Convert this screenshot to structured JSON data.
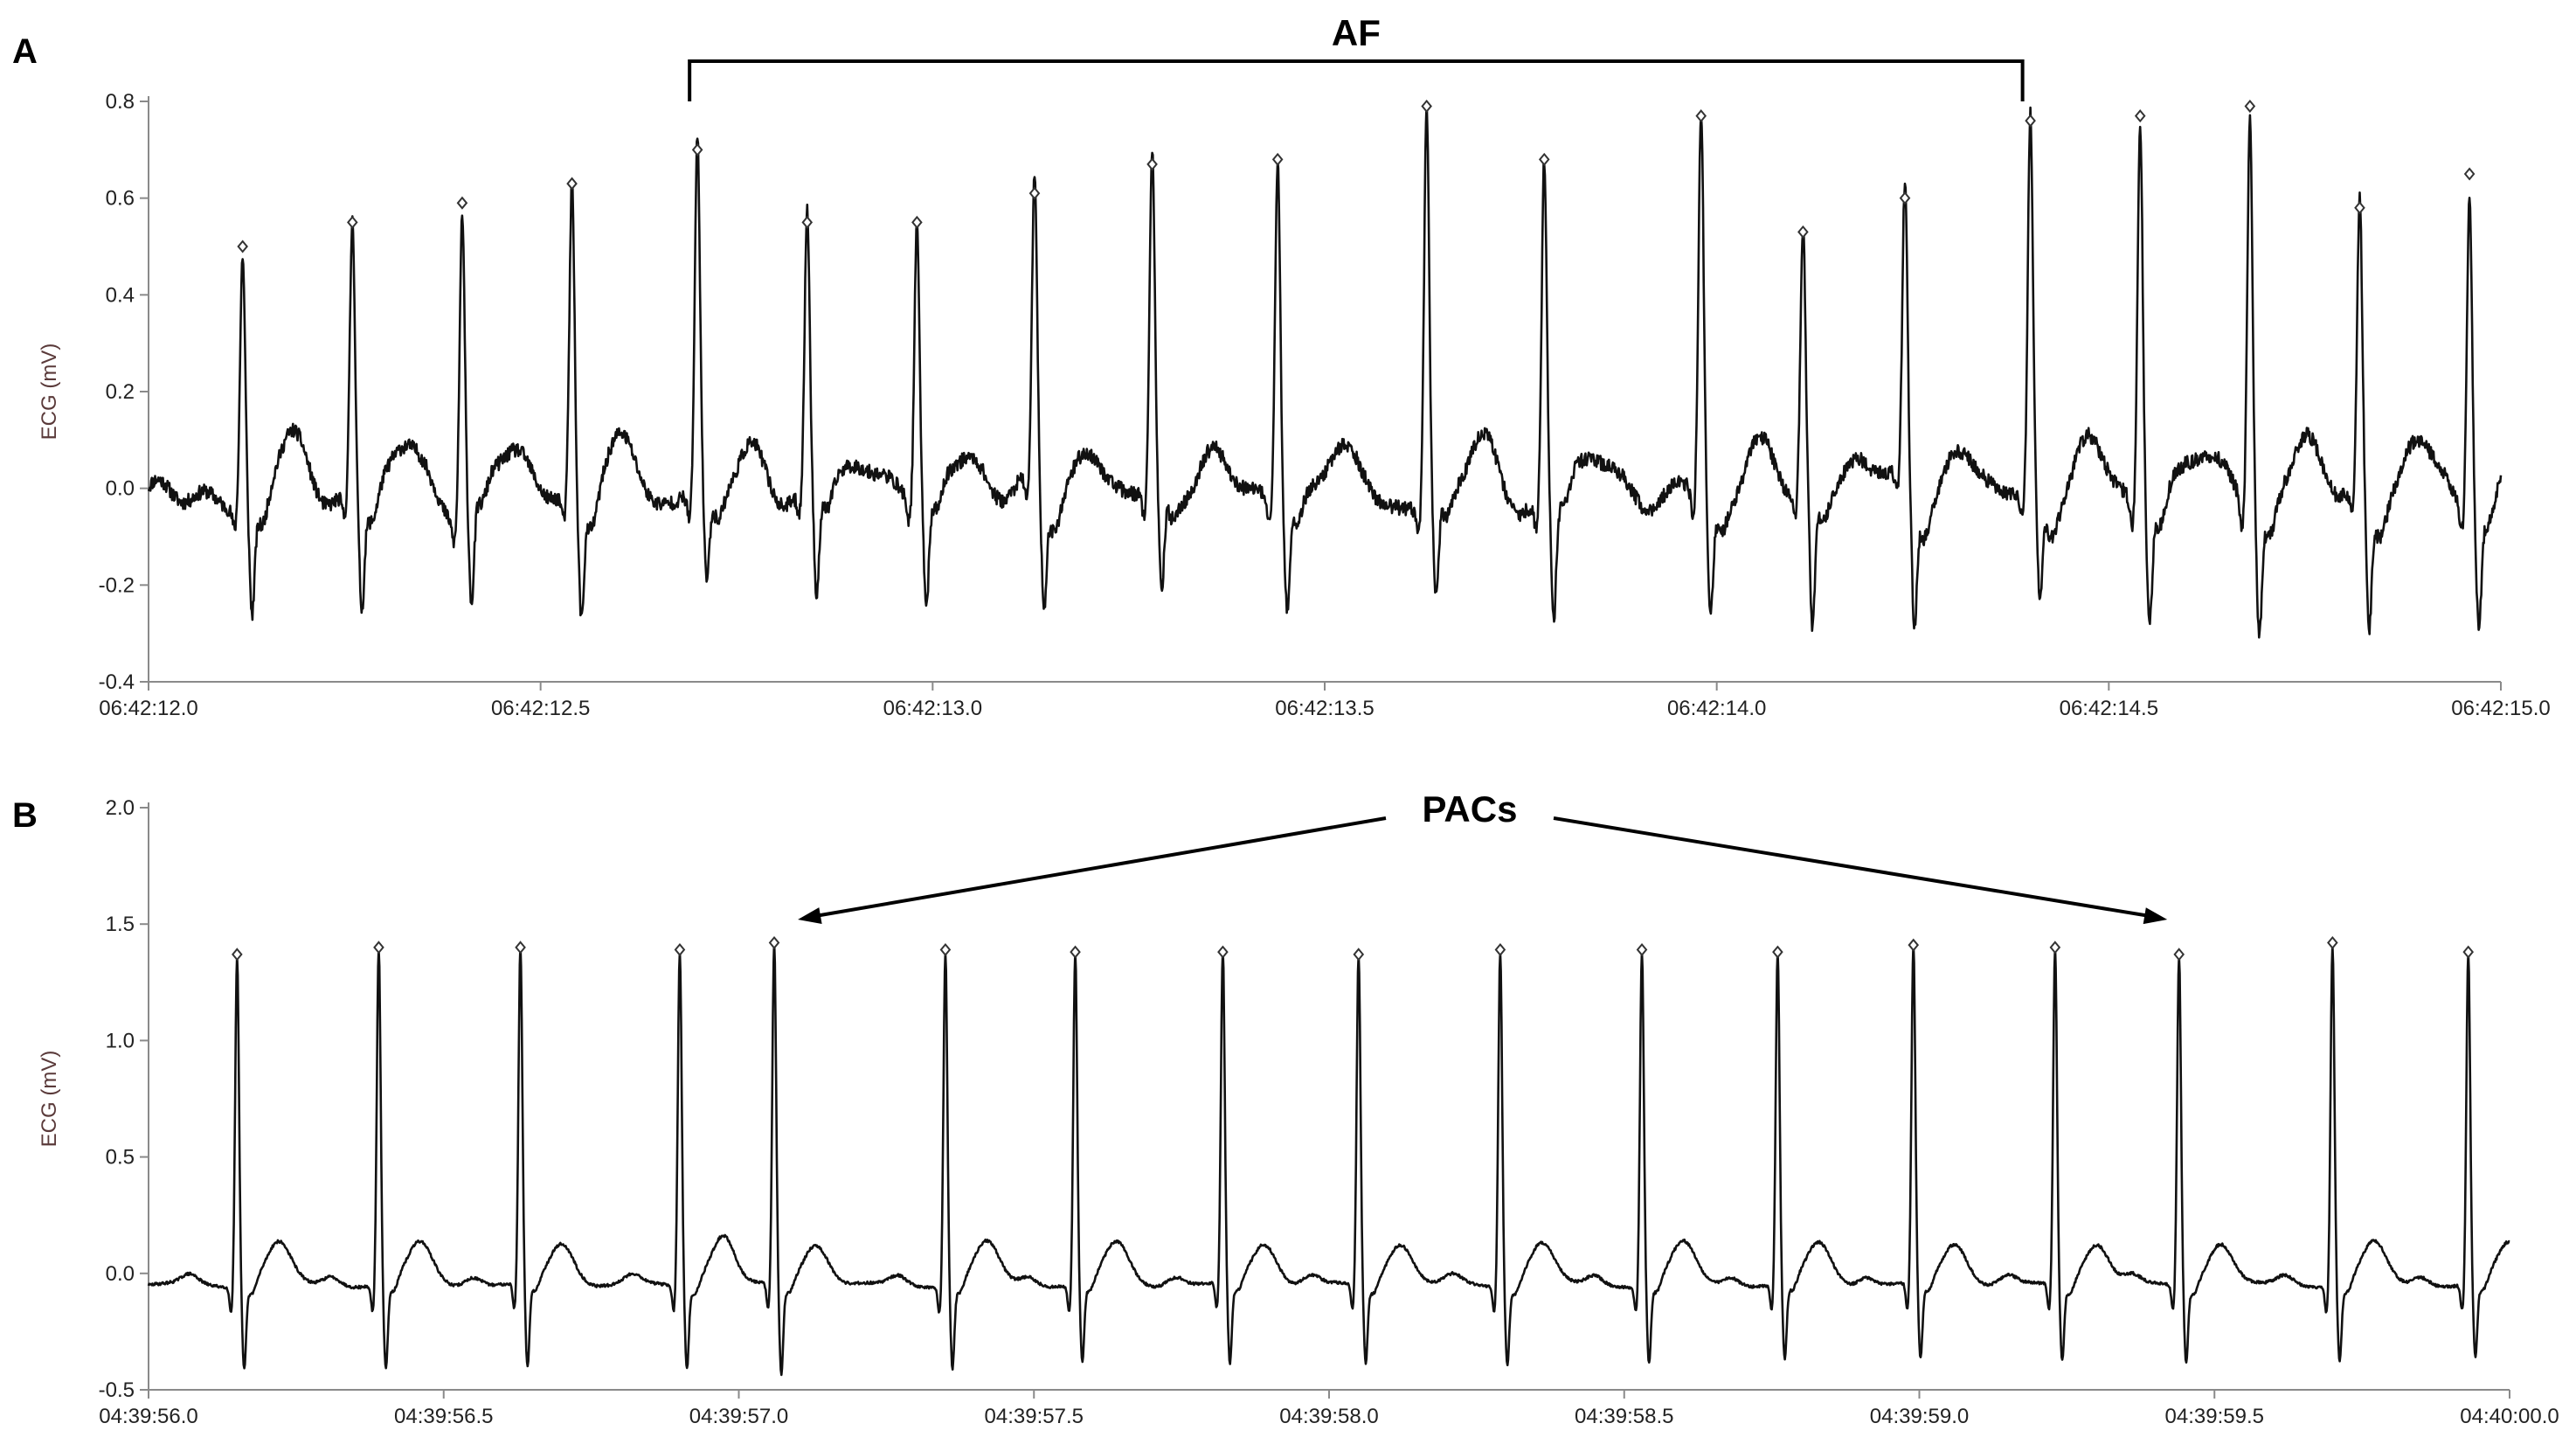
{
  "chart_data": [
    {
      "type": "line",
      "panel_label": "A",
      "ylabel": "ECG (mV)",
      "xlabel": "",
      "ylim": [
        -0.4,
        0.8
      ],
      "yticks": [
        "-0.4",
        "-0.2",
        "0.0",
        "0.2",
        "0.4",
        "0.6",
        "0.8"
      ],
      "xlim_seconds": [
        0,
        3.0
      ],
      "xticks": [
        {
          "t": 0.0,
          "label": "06:42:12.0"
        },
        {
          "t": 0.5,
          "label": "06:42:12.5"
        },
        {
          "t": 1.0,
          "label": "06:42:13.0"
        },
        {
          "t": 1.5,
          "label": "06:42:13.5"
        },
        {
          "t": 2.0,
          "label": "06:42:14.0"
        },
        {
          "t": 2.5,
          "label": "06:42:14.5"
        },
        {
          "t": 3.0,
          "label": "06:42:15.0"
        }
      ],
      "baseline_mV": -0.02,
      "noise": "fibrillatory",
      "r_peaks": [
        {
          "t": 0.12,
          "r": 0.5,
          "s": -0.24
        },
        {
          "t": 0.26,
          "r": 0.55,
          "s": -0.24
        },
        {
          "t": 0.4,
          "r": 0.59,
          "s": -0.24
        },
        {
          "t": 0.54,
          "r": 0.63,
          "s": -0.25
        },
        {
          "t": 0.7,
          "r": 0.7,
          "s": -0.21
        },
        {
          "t": 0.84,
          "r": 0.55,
          "s": -0.24
        },
        {
          "t": 0.98,
          "r": 0.55,
          "s": -0.24
        },
        {
          "t": 1.13,
          "r": 0.61,
          "s": -0.24
        },
        {
          "t": 1.28,
          "r": 0.67,
          "s": -0.24
        },
        {
          "t": 1.44,
          "r": 0.68,
          "s": -0.24
        },
        {
          "t": 1.63,
          "r": 0.79,
          "s": -0.23
        },
        {
          "t": 1.78,
          "r": 0.68,
          "s": -0.28
        },
        {
          "t": 1.98,
          "r": 0.77,
          "s": -0.26
        },
        {
          "t": 2.11,
          "r": 0.53,
          "s": -0.29
        },
        {
          "t": 2.24,
          "r": 0.6,
          "s": -0.27
        },
        {
          "t": 2.4,
          "r": 0.76,
          "s": -0.22
        },
        {
          "t": 2.54,
          "r": 0.77,
          "s": -0.25
        },
        {
          "t": 2.68,
          "r": 0.79,
          "s": -0.27
        },
        {
          "t": 2.82,
          "r": 0.58,
          "s": -0.28
        },
        {
          "t": 2.96,
          "r": 0.65,
          "s": -0.25
        }
      ],
      "annotation": {
        "label": "AF",
        "type": "bracket",
        "t_start": 0.69,
        "t_end": 2.39
      }
    },
    {
      "type": "line",
      "panel_label": "B",
      "ylabel": "ECG (mV)",
      "xlabel": "",
      "ylim": [
        -0.5,
        2.0
      ],
      "yticks": [
        "-0.5",
        "0.0",
        "0.5",
        "1.0",
        "1.5",
        "2.0"
      ],
      "xlim_seconds": [
        0,
        4.0
      ],
      "xticks": [
        {
          "t": 0.0,
          "label": "04:39:56.0"
        },
        {
          "t": 0.5,
          "label": "04:39:56.5"
        },
        {
          "t": 1.0,
          "label": "04:39:57.0"
        },
        {
          "t": 1.5,
          "label": "04:39:57.5"
        },
        {
          "t": 2.0,
          "label": "04:39:58.0"
        },
        {
          "t": 2.5,
          "label": "04:39:58.5"
        },
        {
          "t": 3.0,
          "label": "04:39:59.0"
        },
        {
          "t": 3.5,
          "label": "04:39:59.5"
        },
        {
          "t": 4.0,
          "label": "04:40:00.0"
        }
      ],
      "baseline_mV": -0.05,
      "noise": "low",
      "r_peaks": [
        {
          "t": 0.15,
          "r": 1.37,
          "s": -0.4
        },
        {
          "t": 0.39,
          "r": 1.4,
          "s": -0.41
        },
        {
          "t": 0.63,
          "r": 1.4,
          "s": -0.41
        },
        {
          "t": 0.9,
          "r": 1.39,
          "s": -0.4
        },
        {
          "t": 1.06,
          "r": 1.42,
          "s": -0.43
        },
        {
          "t": 1.35,
          "r": 1.39,
          "s": -0.4
        },
        {
          "t": 1.57,
          "r": 1.38,
          "s": -0.38
        },
        {
          "t": 1.82,
          "r": 1.38,
          "s": -0.39
        },
        {
          "t": 2.05,
          "r": 1.37,
          "s": -0.38
        },
        {
          "t": 2.29,
          "r": 1.39,
          "s": -0.38
        },
        {
          "t": 2.53,
          "r": 1.39,
          "s": -0.38
        },
        {
          "t": 2.76,
          "r": 1.38,
          "s": -0.37
        },
        {
          "t": 2.99,
          "r": 1.41,
          "s": -0.37
        },
        {
          "t": 3.23,
          "r": 1.4,
          "s": -0.37
        },
        {
          "t": 3.44,
          "r": 1.37,
          "s": -0.37
        },
        {
          "t": 3.7,
          "r": 1.42,
          "s": -0.37
        },
        {
          "t": 3.93,
          "r": 1.38,
          "s": -0.36
        }
      ],
      "annotation": {
        "label": "PACs",
        "type": "arrows",
        "targets_t": [
          1.1,
          3.42
        ]
      }
    }
  ]
}
